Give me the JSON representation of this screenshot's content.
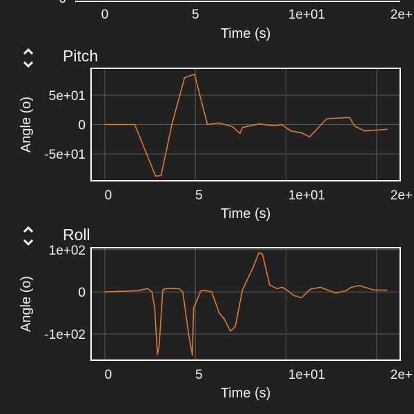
{
  "colors": {
    "background": "#212121",
    "line": "#e07b2a",
    "frame": "#ffffff",
    "grid": "#5a5a5a"
  },
  "icons": {
    "reorder": "chevron-up-down-icon"
  },
  "top_partial": {
    "xticks": [
      {
        "v": 0,
        "label": "0"
      },
      {
        "v": 5,
        "label": "5"
      },
      {
        "v": 10,
        "label": "1e+01"
      },
      {
        "v": 15,
        "label": "2e+"
      }
    ],
    "ytick_label": "0",
    "xlabel": "Time (s)"
  },
  "chart_data": [
    {
      "type": "line",
      "title": "Pitch",
      "xlabel": "Time (s)",
      "ylabel": "Angle (o)",
      "xlim": [
        -0.76,
        16.3
      ],
      "ylim": [
        -96,
        96
      ],
      "grid": true,
      "xticks": [
        {
          "v": 0,
          "label": "0"
        },
        {
          "v": 5,
          "label": "5"
        },
        {
          "v": 10,
          "label": "1e+01"
        },
        {
          "v": 15,
          "label": "2e+"
        }
      ],
      "yticks": [
        {
          "v": 50,
          "label": "5e+01"
        },
        {
          "v": 0,
          "label": "0"
        },
        {
          "v": -50,
          "label": "-5e+01"
        }
      ],
      "x": [
        0,
        1.65,
        2.8,
        3.1,
        3.7,
        4.4,
        4.95,
        5.66,
        6.3,
        7.05,
        7.45,
        7.6,
        8.5,
        9.4,
        9.75,
        10.27,
        10.85,
        11.3,
        12.25,
        13.5,
        13.8,
        14.35,
        14.8,
        15.6
      ],
      "y": [
        0,
        0,
        -88,
        -87,
        0,
        80,
        86,
        0,
        3,
        -4,
        -15,
        -5,
        1,
        -2,
        0,
        -11,
        -14,
        -21,
        10,
        12,
        -3,
        -11,
        -10,
        -8
      ]
    },
    {
      "type": "line",
      "title": "Roll",
      "xlabel": "Time (s)",
      "ylabel": "Angle (o)",
      "xlim": [
        -0.76,
        16.3
      ],
      "ylim": [
        -162,
        105
      ],
      "grid": true,
      "xticks": [
        {
          "v": 0,
          "label": "0"
        },
        {
          "v": 5,
          "label": "5"
        },
        {
          "v": 10,
          "label": "1e+01"
        },
        {
          "v": 15,
          "label": "2e+"
        }
      ],
      "yticks": [
        {
          "v": 100,
          "label": "1e+02"
        },
        {
          "v": 0,
          "label": "0"
        },
        {
          "v": -100,
          "label": "-1e+02"
        }
      ],
      "x": [
        0,
        1.8,
        2.37,
        2.6,
        2.75,
        2.9,
        3.0,
        3.2,
        3.4,
        4.1,
        4.3,
        4.64,
        4.83,
        4.9,
        5.3,
        5.5,
        5.9,
        6.3,
        6.6,
        6.93,
        7.2,
        7.6,
        8.2,
        8.5,
        8.7,
        9.1,
        9.5,
        9.8,
        10.1,
        10.4,
        10.85,
        11.35,
        11.9,
        12.75,
        13.3,
        13.6,
        14.05,
        14.8,
        15.6
      ],
      "y": [
        0,
        3,
        8,
        0,
        -38,
        -148,
        -126,
        5,
        8,
        8,
        0,
        -104,
        -150,
        -38,
        3,
        4,
        0,
        -49,
        -65,
        -93,
        -82,
        5,
        60,
        93,
        90,
        16,
        8,
        11,
        3,
        -8,
        -14,
        7,
        11,
        -3,
        3,
        11,
        15,
        5,
        4
      ]
    }
  ]
}
